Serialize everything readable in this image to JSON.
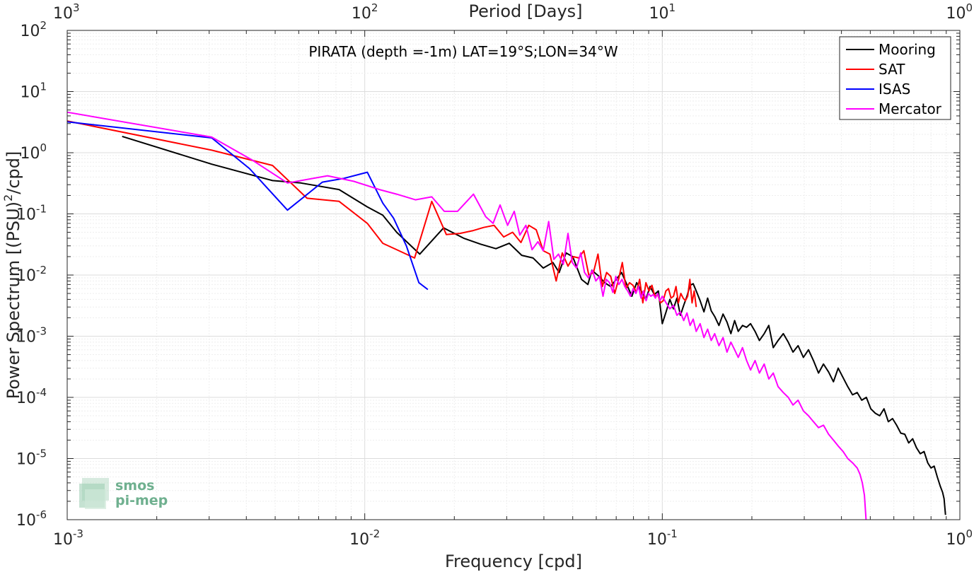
{
  "chart_data": {
    "type": "line",
    "title": "PIRATA (depth =-1m) LAT=19°S;LON=34°W",
    "xlabel": "Frequency [cpd]",
    "ylabel_main": "Power Spectrum [(PSU)",
    "ylabel_sup": "2",
    "ylabel_tail": "/cpd]",
    "top_axis_label": "Period [Days]",
    "x_scale": "log",
    "y_scale": "log",
    "xlim": [
      0.001,
      1
    ],
    "ylim": [
      1e-06,
      100
    ],
    "grid": true,
    "legend_position": "top-right",
    "x_ticks": [
      {
        "base": "10",
        "exp": "-3",
        "value": 0.001
      },
      {
        "base": "10",
        "exp": "-2",
        "value": 0.01
      },
      {
        "base": "10",
        "exp": "-1",
        "value": 0.1
      },
      {
        "base": "10",
        "exp": "0",
        "value": 1
      }
    ],
    "top_ticks": [
      {
        "base": "10",
        "exp": "3",
        "value": 0.001
      },
      {
        "base": "10",
        "exp": "2",
        "value": 0.01
      },
      {
        "base": "10",
        "exp": "1",
        "value": 0.1
      },
      {
        "base": "10",
        "exp": "0",
        "value": 1
      }
    ],
    "y_ticks": [
      {
        "base": "10",
        "exp": "2",
        "value": 100
      },
      {
        "base": "10",
        "exp": "1",
        "value": 10
      },
      {
        "base": "10",
        "exp": "0",
        "value": 1
      },
      {
        "base": "10",
        "exp": "-1",
        "value": 0.1
      },
      {
        "base": "10",
        "exp": "-2",
        "value": 0.01
      },
      {
        "base": "10",
        "exp": "-3",
        "value": 0.001
      },
      {
        "base": "10",
        "exp": "-4",
        "value": 0.0001
      },
      {
        "base": "10",
        "exp": "-5",
        "value": 1e-05
      },
      {
        "base": "10",
        "exp": "-6",
        "value": 1e-06
      }
    ],
    "series": [
      {
        "name": "Mooring",
        "color": "#000000",
        "x": [
          0.00153,
          0.00306,
          0.0049,
          0.0061,
          0.0082,
          0.0102,
          0.0115,
          0.0128,
          0.0153,
          0.0184,
          0.0215,
          0.0245,
          0.0276,
          0.0306,
          0.0337,
          0.0368,
          0.0398,
          0.0429,
          0.045,
          0.0475,
          0.05,
          0.0535,
          0.0562,
          0.058,
          0.0613,
          0.064,
          0.067,
          0.07,
          0.073,
          0.076,
          0.079,
          0.082,
          0.085,
          0.088,
          0.091,
          0.094,
          0.097,
          0.1,
          0.103,
          0.106,
          0.109,
          0.112,
          0.115,
          0.118,
          0.121,
          0.124,
          0.127,
          0.13,
          0.134,
          0.138,
          0.142,
          0.146,
          0.15,
          0.155,
          0.16,
          0.165,
          0.17,
          0.175,
          0.18,
          0.186,
          0.192,
          0.198,
          0.205,
          0.212,
          0.22,
          0.228,
          0.236,
          0.245,
          0.255,
          0.265,
          0.275,
          0.286,
          0.298,
          0.31,
          0.322,
          0.335,
          0.348,
          0.362,
          0.376,
          0.39,
          0.405,
          0.42,
          0.436,
          0.452,
          0.468,
          0.485,
          0.502,
          0.52,
          0.538,
          0.556,
          0.575,
          0.594,
          0.613,
          0.633,
          0.653,
          0.673,
          0.694,
          0.715,
          0.736,
          0.758,
          0.78,
          0.8,
          0.82,
          0.84,
          0.86,
          0.875,
          0.885,
          0.895
        ],
        "y": [
          1.85,
          0.65,
          0.35,
          0.32,
          0.25,
          0.13,
          0.095,
          0.05,
          0.022,
          0.059,
          0.04,
          0.032,
          0.027,
          0.033,
          0.021,
          0.019,
          0.013,
          0.016,
          0.011,
          0.023,
          0.02,
          0.0085,
          0.007,
          0.012,
          0.0095,
          0.0075,
          0.0065,
          0.0085,
          0.011,
          0.007,
          0.0045,
          0.0075,
          0.0055,
          0.004,
          0.0065,
          0.0048,
          0.0055,
          0.0016,
          0.0025,
          0.004,
          0.0028,
          0.0042,
          0.0022,
          0.0032,
          0.0045,
          0.0068,
          0.0072,
          0.0055,
          0.0038,
          0.0025,
          0.0042,
          0.0026,
          0.0021,
          0.0015,
          0.0023,
          0.0017,
          0.0011,
          0.0018,
          0.0012,
          0.0015,
          0.0014,
          0.0016,
          0.0012,
          0.00085,
          0.0011,
          0.0015,
          0.00065,
          0.00085,
          0.0011,
          0.0008,
          0.00055,
          0.0007,
          0.00045,
          0.0006,
          0.0004,
          0.00025,
          0.00035,
          0.00026,
          0.00018,
          0.0003,
          0.00021,
          0.00015,
          0.00011,
          0.00012,
          9e-05,
          0.0001,
          6.5e-05,
          5.5e-05,
          5e-05,
          6.5e-05,
          4e-05,
          4.5e-05,
          3.5e-05,
          2.6e-05,
          2.5e-05,
          1.8e-05,
          2.1e-05,
          1.5e-05,
          1.2e-05,
          1.3e-05,
          8.5e-06,
          7e-06,
          7.5e-06,
          5e-06,
          3.5e-06,
          2.8e-06,
          2.2e-06,
          1.2e-06
        ]
      },
      {
        "name": "SAT",
        "color": "#ff0000",
        "x": [
          0.001,
          0.00306,
          0.0049,
          0.0064,
          0.0082,
          0.0102,
          0.0115,
          0.0128,
          0.0147,
          0.0168,
          0.0188,
          0.0209,
          0.023,
          0.0251,
          0.0272,
          0.0293,
          0.0314,
          0.0335,
          0.0356,
          0.0377,
          0.0398,
          0.0419,
          0.044,
          0.0461,
          0.0482,
          0.0503,
          0.0524,
          0.0545,
          0.0566,
          0.0587,
          0.0608,
          0.0629,
          0.065,
          0.0671,
          0.0692,
          0.0713,
          0.0734,
          0.0755,
          0.0776,
          0.0797,
          0.0818,
          0.0839,
          0.086,
          0.0881,
          0.0902,
          0.0923,
          0.0944,
          0.0965,
          0.0986,
          0.1007,
          0.1028,
          0.1049,
          0.107,
          0.1091,
          0.1112,
          0.1133,
          0.1154,
          0.1175,
          0.1196,
          0.1217,
          0.1238,
          0.1259,
          0.128,
          0.13
        ],
        "y": [
          3.3,
          1.1,
          0.62,
          0.18,
          0.16,
          0.07,
          0.033,
          0.026,
          0.019,
          0.16,
          0.046,
          0.048,
          0.053,
          0.06,
          0.065,
          0.042,
          0.05,
          0.034,
          0.065,
          0.055,
          0.025,
          0.022,
          0.008,
          0.023,
          0.014,
          0.02,
          0.019,
          0.025,
          0.01,
          0.011,
          0.022,
          0.0065,
          0.011,
          0.0095,
          0.005,
          0.0085,
          0.016,
          0.006,
          0.0075,
          0.0068,
          0.0052,
          0.0085,
          0.0035,
          0.0075,
          0.0055,
          0.0068,
          0.0045,
          0.0048,
          0.0035,
          0.0038,
          0.0055,
          0.006,
          0.0042,
          0.0045,
          0.0065,
          0.0035,
          0.005,
          0.0042,
          0.0038,
          0.0045,
          0.0085,
          0.0035,
          0.0055,
          0.003
        ]
      },
      {
        "name": "ISAS",
        "color": "#0000ff",
        "x": [
          0.001,
          0.00306,
          0.0041,
          0.0055,
          0.0072,
          0.0085,
          0.0102,
          0.0115,
          0.0125,
          0.0138,
          0.0152,
          0.0163
        ],
        "y": [
          3.2,
          1.75,
          0.55,
          0.115,
          0.33,
          0.38,
          0.48,
          0.15,
          0.085,
          0.03,
          0.0075,
          0.0058
        ]
      },
      {
        "name": "Mercator",
        "color": "#ff00ff",
        "x": [
          0.001,
          0.00306,
          0.0042,
          0.0055,
          0.0075,
          0.0092,
          0.0112,
          0.0128,
          0.0148,
          0.0168,
          0.0185,
          0.0205,
          0.0232,
          0.0255,
          0.027,
          0.0285,
          0.0302,
          0.0318,
          0.0332,
          0.0348,
          0.0365,
          0.0382,
          0.0398,
          0.0415,
          0.0432,
          0.0448,
          0.0465,
          0.0482,
          0.0498,
          0.0515,
          0.0532,
          0.0548,
          0.0565,
          0.0582,
          0.0598,
          0.0615,
          0.0632,
          0.0648,
          0.0665,
          0.0682,
          0.0698,
          0.0715,
          0.0732,
          0.0748,
          0.0765,
          0.0782,
          0.0798,
          0.0815,
          0.0832,
          0.0848,
          0.0865,
          0.0882,
          0.0898,
          0.0915,
          0.0932,
          0.0948,
          0.0965,
          0.0982,
          0.1,
          0.103,
          0.106,
          0.109,
          0.112,
          0.115,
          0.118,
          0.121,
          0.124,
          0.127,
          0.13,
          0.134,
          0.138,
          0.142,
          0.146,
          0.15,
          0.155,
          0.16,
          0.165,
          0.17,
          0.175,
          0.18,
          0.186,
          0.192,
          0.198,
          0.205,
          0.212,
          0.22,
          0.228,
          0.236,
          0.245,
          0.255,
          0.265,
          0.275,
          0.286,
          0.298,
          0.31,
          0.322,
          0.335,
          0.348,
          0.362,
          0.376,
          0.39,
          0.405,
          0.42,
          0.436,
          0.452,
          0.462,
          0.47,
          0.478,
          0.484
        ],
        "y": [
          4.6,
          1.8,
          0.75,
          0.32,
          0.42,
          0.34,
          0.25,
          0.21,
          0.17,
          0.19,
          0.11,
          0.11,
          0.21,
          0.09,
          0.07,
          0.14,
          0.065,
          0.11,
          0.045,
          0.065,
          0.026,
          0.035,
          0.025,
          0.075,
          0.018,
          0.022,
          0.015,
          0.048,
          0.016,
          0.013,
          0.023,
          0.011,
          0.009,
          0.012,
          0.008,
          0.0095,
          0.0045,
          0.0085,
          0.0075,
          0.0052,
          0.0095,
          0.007,
          0.0085,
          0.0065,
          0.0055,
          0.0045,
          0.006,
          0.005,
          0.0065,
          0.0042,
          0.0055,
          0.0038,
          0.005,
          0.0045,
          0.0048,
          0.0042,
          0.005,
          0.0038,
          0.0045,
          0.0035,
          0.0028,
          0.0032,
          0.0022,
          0.0025,
          0.0018,
          0.0024,
          0.0015,
          0.0019,
          0.0012,
          0.0016,
          0.00095,
          0.0013,
          0.00085,
          0.0011,
          0.0007,
          0.00095,
          0.00055,
          0.0008,
          0.0006,
          0.00045,
          0.00065,
          0.0004,
          0.00028,
          0.0004,
          0.00025,
          0.00035,
          0.0002,
          0.00025,
          0.00015,
          0.00012,
          0.0001,
          7.5e-05,
          9e-05,
          6e-05,
          5e-05,
          4e-05,
          3.2e-05,
          3.5e-05,
          2.5e-05,
          2e-05,
          1.6e-05,
          1.3e-05,
          1e-05,
          8.5e-06,
          7e-06,
          5.5e-06,
          4e-06,
          2.5e-06,
          1e-06
        ]
      }
    ]
  },
  "logo": {
    "line1": "smos",
    "line2": "pi-mep"
  }
}
